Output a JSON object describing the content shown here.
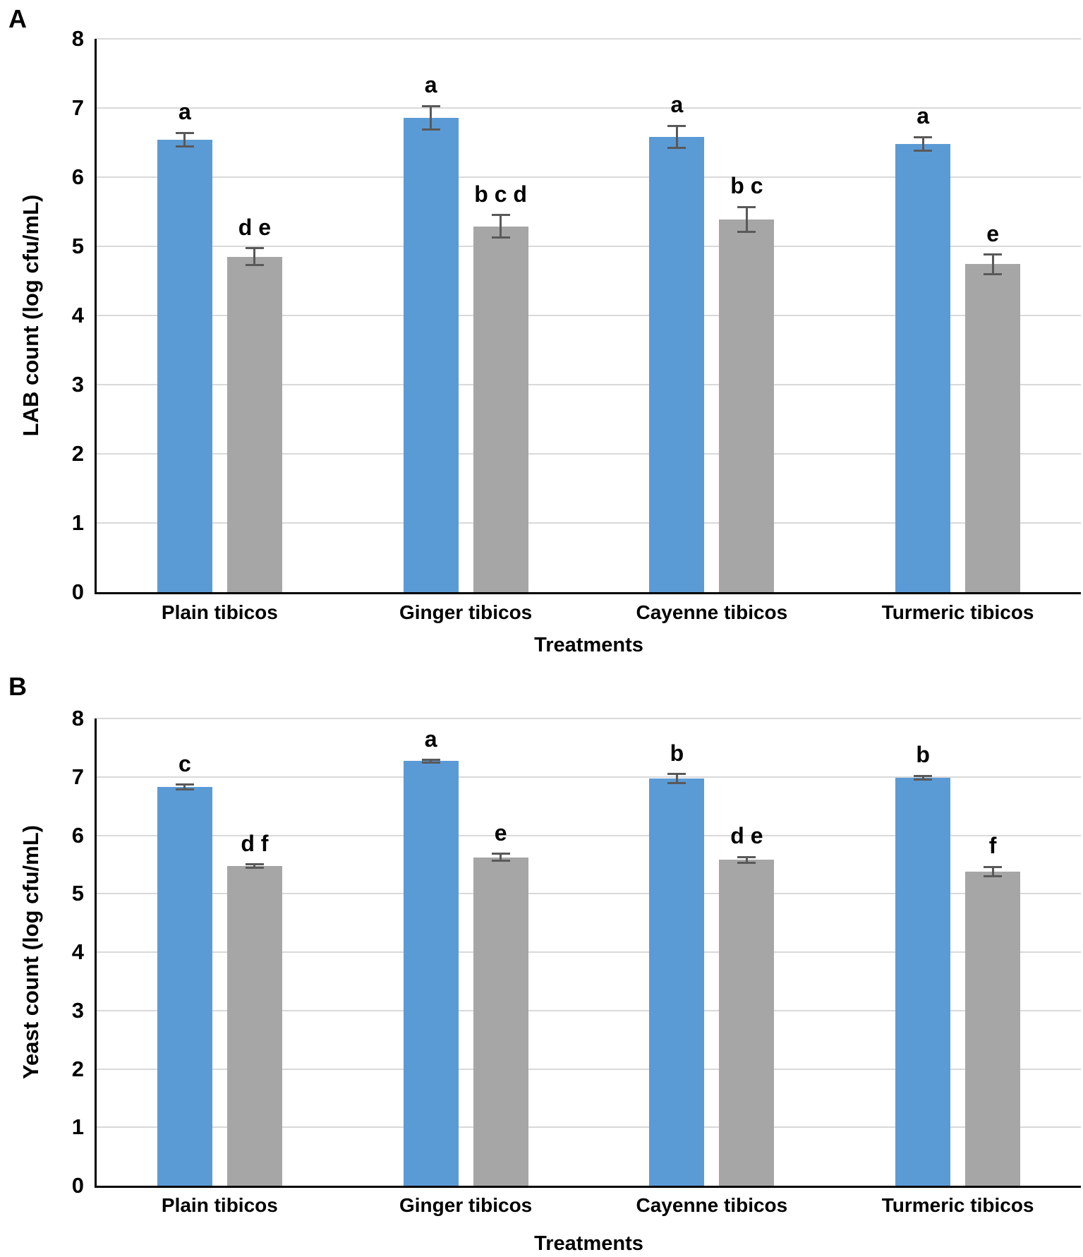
{
  "figure": {
    "panel_a_label": "A",
    "panel_b_label": "B"
  },
  "chart_data": [
    {
      "panel": "A",
      "type": "bar",
      "title": "",
      "xlabel": "Treatments",
      "ylabel": "LAB count (log cfu/mL)",
      "ylim": [
        0,
        8
      ],
      "yticks": [
        0,
        1,
        2,
        3,
        4,
        5,
        6,
        7,
        8
      ],
      "grid": true,
      "legend_position": "none",
      "categories": [
        "Plain tibicos",
        "Ginger tibicos",
        "Cayenne tibicos",
        "Turmeric tibicos"
      ],
      "series": [
        {
          "name": "blue",
          "color": "#5B9BD5",
          "values": [
            6.54,
            6.86,
            6.58,
            6.48
          ],
          "errors": [
            0.1,
            0.17,
            0.16,
            0.1
          ],
          "sig_labels": [
            "a",
            "a",
            "a",
            "a"
          ]
        },
        {
          "name": "gray",
          "color": "#A6A6A6",
          "values": [
            4.85,
            5.29,
            5.39,
            4.74
          ],
          "errors": [
            0.12,
            0.16,
            0.18,
            0.14
          ],
          "sig_labels": [
            "d e",
            "b c d",
            "b c",
            "e"
          ]
        }
      ]
    },
    {
      "panel": "B",
      "type": "bar",
      "title": "",
      "xlabel": "Treatments",
      "ylabel": "Yeast count (log cfu/mL)",
      "ylim": [
        0,
        8
      ],
      "yticks": [
        0,
        1,
        2,
        3,
        4,
        5,
        6,
        7,
        8
      ],
      "grid": true,
      "legend_position": "none",
      "categories": [
        "Plain tibicos",
        "Ginger tibicos",
        "Cayenne tibicos",
        "Turmeric tibicos"
      ],
      "series": [
        {
          "name": "blue",
          "color": "#5B9BD5",
          "values": [
            6.83,
            7.27,
            6.97,
            6.99
          ],
          "errors": [
            0.04,
            0.02,
            0.08,
            0.03
          ],
          "sig_labels": [
            "c",
            "a",
            "b",
            "b"
          ]
        },
        {
          "name": "gray",
          "color": "#A6A6A6",
          "values": [
            5.47,
            5.62,
            5.58,
            5.38
          ],
          "errors": [
            0.03,
            0.06,
            0.05,
            0.08
          ],
          "sig_labels": [
            "d f",
            "e",
            "d e",
            "f"
          ]
        }
      ]
    }
  ],
  "style_colors": {
    "bar_blue": "#5B9BD5",
    "bar_gray": "#A6A6A6",
    "error_bar": "#595959",
    "gridline": "#D9D9D9",
    "axis": "#000000"
  }
}
